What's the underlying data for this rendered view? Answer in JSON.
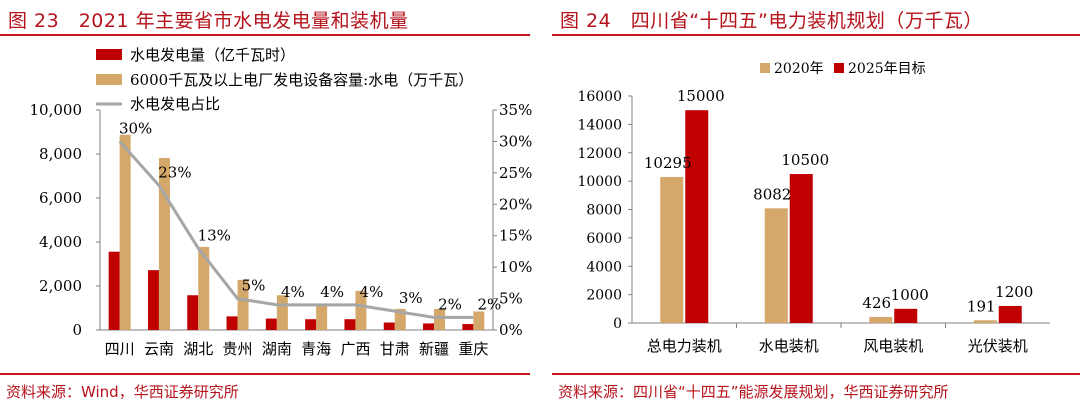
{
  "left_panel": {
    "figure_title": "图 23　2021 年主要省市水电发电量和装机量",
    "source": "资料来源：Wind，华西证券研究所"
  },
  "right_panel": {
    "figure_title": "图 24　四川省“十四五”电力装机规划（万千瓦）",
    "source": "资料来源：四川省“十四五”能源发展规划，华西证券研究所"
  },
  "colors": {
    "title_red": "#b5121b",
    "rule_red": "#c4161c",
    "series_red": "#c00000",
    "series_tan": "#d4a86a",
    "line_gray": "#a6a6a6"
  },
  "chart_data": [
    {
      "type": "bar",
      "categories": [
        "四川",
        "云南",
        "湖北",
        "贵州",
        "湖南",
        "青海",
        "广西",
        "甘肃",
        "新疆",
        "重庆"
      ],
      "series": [
        {
          "name": "水电发电量（亿千瓦时）",
          "axis": "left",
          "color": "#c00000",
          "values": [
            3560,
            2720,
            1580,
            620,
            520,
            490,
            490,
            340,
            300,
            270
          ]
        },
        {
          "name": "6000千瓦及以上电厂发电设备容量:水电（万千瓦）",
          "axis": "left",
          "color": "#d4a86a",
          "values": [
            8870,
            7820,
            3780,
            2280,
            1580,
            1200,
            1780,
            960,
            960,
            840
          ]
        },
        {
          "name": "水电发电占比",
          "axis": "right",
          "type": "line",
          "color": "#a6a6a6",
          "values": [
            30,
            23,
            13,
            5,
            4,
            4,
            4,
            3,
            2,
            2
          ],
          "labels": [
            "30%",
            "23%",
            "13%",
            "5%",
            "4%",
            "4%",
            "4%",
            "3%",
            "2%",
            "2%"
          ]
        }
      ],
      "ylim": [
        0,
        10000
      ],
      "yticks": [
        "0",
        "2,000",
        "4,000",
        "6,000",
        "8,000",
        "10,000"
      ],
      "y2lim": [
        0,
        35
      ],
      "y2ticks": [
        "0%",
        "5%",
        "10%",
        "15%",
        "20%",
        "25%",
        "30%",
        "35%"
      ],
      "legend_position": "top-left",
      "grid": false
    },
    {
      "type": "bar",
      "categories": [
        "总电力装机",
        "水电装机",
        "风电装机",
        "光伏装机"
      ],
      "series": [
        {
          "name": "2020年",
          "color": "#d4a86a",
          "values": [
            10295,
            8082,
            426,
            191
          ]
        },
        {
          "name": "2025年目标",
          "color": "#c00000",
          "values": [
            15000,
            10500,
            1000,
            1200
          ]
        }
      ],
      "ylim": [
        0,
        16000
      ],
      "yticks": [
        "0",
        "2000",
        "4000",
        "6000",
        "8000",
        "10000",
        "12000",
        "14000",
        "16000"
      ],
      "legend_position": "top-center",
      "grid": false
    }
  ]
}
